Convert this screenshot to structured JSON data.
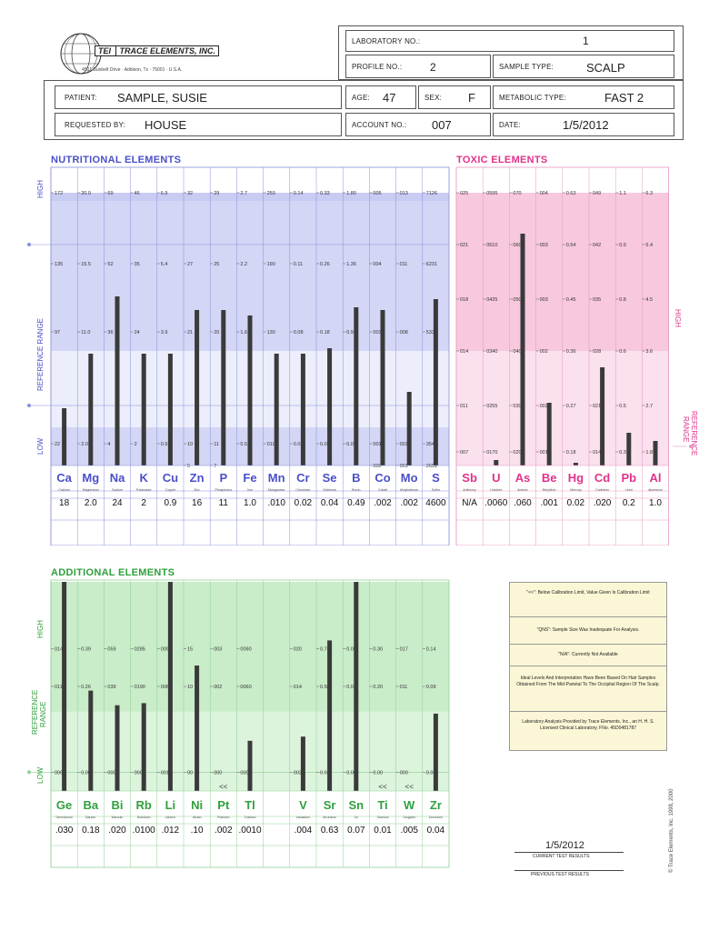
{
  "logo": {
    "mark": "TEI",
    "company": "TRACE ELEMENTS, INC.",
    "address": "4501 Sunbelt Drive · Addison, Tx · 75001 · U.S.A."
  },
  "header": {
    "lab_no_label": "LABORATORY NO.:",
    "lab_no": "1",
    "profile_no_label": "PROFILE NO.:",
    "profile_no": "2",
    "sample_type_label": "SAMPLE TYPE:",
    "sample_type": "SCALP",
    "patient_label": "PATIENT:",
    "patient": "SAMPLE, SUSIE",
    "age_label": "AGE:",
    "age": "47",
    "sex_label": "SEX:",
    "sex": "F",
    "metabolic_label": "METABOLIC TYPE:",
    "metabolic": "FAST 2",
    "requested_label": "REQUESTED BY:",
    "requested": "HOUSE",
    "account_label": "ACCOUNT NO.:",
    "account": "007",
    "date_label": "DATE:",
    "date": "1/5/2012"
  },
  "section_labels": {
    "high": "HIGH",
    "low": "LOW",
    "reference_range": "REFERENCE RANGE",
    "reference": "REFERENCE",
    "range": "RANGE"
  },
  "colors": {
    "nutritional": "#4a4fc8",
    "toxic": "#e0338a",
    "additional": "#2fa03c",
    "bar": "#3a3a3a"
  },
  "notes": [
    "\"<<\": Below Calibration Limit, Value Given Is Calibration Limit",
    "\"QNS\": Sample Size Was Inadequate For Analysis.",
    "\"N/A\": Currently Not Available",
    "Ideal Levels And Interpretation Have Been Based On Hair Samples Obtained From The Mid-Parietal To The Occipital Region Of The Scalp.",
    "Laboratory Analysis Provided by Trace Elements, Inc., an H. H. S. Licensed Clinical Laboratory. FNo. 45D0481787"
  ],
  "footer": {
    "current_date": "1/5/2012",
    "current_label": "CURRENT TEST RESULTS",
    "previous_label": "PREVIOUS TEST RESULTS",
    "copyright": "© Trace Elements, Inc. 1998, 2000"
  },
  "chart_data": [
    {
      "type": "bar",
      "title": "NUTRITIONAL ELEMENTS",
      "categories": [
        "Ca",
        "Mg",
        "Na",
        "K",
        "Cu",
        "Zn",
        "P",
        "Fe",
        "Mn",
        "Cr",
        "Se",
        "B",
        "Co",
        "Mo",
        "S"
      ],
      "names": [
        "Calcium",
        "Magnesium",
        "Sodium",
        "Potassium",
        "Copper",
        "Zinc",
        "Phosphorus",
        "Iron",
        "Manganese",
        "Chromium",
        "Selenium",
        "Boron",
        "Cobalt",
        "Molybdenum",
        "Sulfur"
      ],
      "values": [
        18,
        2.0,
        24,
        2,
        0.9,
        16,
        11,
        1.0,
        0.01,
        0.02,
        0.04,
        0.49,
        0.002,
        0.002,
        4600
      ],
      "value_labels": [
        "18",
        "2.0",
        "24",
        "2",
        "0.9",
        "16",
        "11",
        "1.0",
        ".010",
        "0.02",
        "0.04",
        "0.49",
        ".002",
        ".002",
        "4600"
      ],
      "bar_levels": [
        0.21,
        0.41,
        0.62,
        0.41,
        0.41,
        0.57,
        0.57,
        0.55,
        0.41,
        0.41,
        0.43,
        0.58,
        0.57,
        0.27,
        0.61
      ],
      "scale_ticks": [
        [
          "172",
          "135",
          "97",
          "22"
        ],
        [
          "20.0",
          "15.5",
          "11.0",
          "2.0"
        ],
        [
          "69",
          "52",
          "36",
          "4"
        ],
        [
          "46",
          "35",
          "24",
          "2"
        ],
        [
          "6.9",
          "5.4",
          "3.9",
          "0.9"
        ],
        [
          "32",
          "27",
          "21",
          "10",
          "5"
        ],
        [
          "29",
          "25",
          "20",
          "11",
          "7"
        ],
        [
          "2.7",
          "2.2",
          "1.6",
          "0.5"
        ],
        [
          "250",
          "190",
          "130",
          "010"
        ],
        [
          "0.14",
          "0.11",
          "0.08",
          "0.02"
        ],
        [
          "0.33",
          "0.26",
          "0.18",
          "0.03"
        ],
        [
          "1.80",
          "1.36",
          "0.91",
          "0.02"
        ],
        [
          "005",
          "004",
          "003",
          "001",
          "000"
        ],
        [
          "013",
          "011",
          "008",
          "003",
          "001"
        ],
        [
          "7126",
          "6231",
          "5336",
          "3546",
          "2651"
        ]
      ]
    },
    {
      "type": "bar",
      "title": "TOXIC ELEMENTS",
      "categories": [
        "Sb",
        "U",
        "As",
        "Be",
        "Hg",
        "Cd",
        "Pb",
        "Al"
      ],
      "names": [
        "Antimony",
        "Uranium",
        "Arsenic",
        "Beryllium",
        "Mercury",
        "Cadmium",
        "Lead",
        "Aluminum"
      ],
      "values": [
        null,
        0.006,
        0.06,
        0.001,
        0.02,
        0.02,
        0.2,
        1.0
      ],
      "value_labels": [
        "N/A",
        ".0060",
        ".060",
        ".001",
        "0.02",
        ".020",
        "0.2",
        "1.0"
      ],
      "bar_levels": [
        0,
        0.02,
        0.85,
        0.23,
        0.01,
        0.36,
        0.12,
        0.09
      ],
      "scale_ticks": [
        [
          "025",
          "021",
          "018",
          "014",
          "011",
          "007"
        ],
        [
          "0595",
          "0510",
          "0425",
          "0340",
          "0255",
          "0170"
        ],
        [
          "070",
          "060",
          "050",
          "040",
          "030",
          "020"
        ],
        [
          "004",
          "003",
          "003",
          "002",
          "002",
          "001"
        ],
        [
          "0.63",
          "0.54",
          "0.45",
          "0.36",
          "0.27",
          "0.18"
        ],
        [
          "049",
          "042",
          "035",
          "028",
          "021",
          "014"
        ],
        [
          "1.1",
          "0.9",
          "0.8",
          "0.6",
          "0.5",
          "0.3"
        ],
        [
          "6.3",
          "5.4",
          "4.5",
          "3.6",
          "2.7",
          "1.8"
        ]
      ]
    },
    {
      "type": "bar",
      "title": "ADDITIONAL ELEMENTS",
      "categories": [
        "Ge",
        "Ba",
        "Bi",
        "Rb",
        "Li",
        "Ni",
        "Pt",
        "Tl",
        "",
        "V",
        "Sr",
        "Sn",
        "Ti",
        "W",
        "Zr"
      ],
      "names": [
        "Germanium",
        "Barium",
        "Bismuth",
        "Rubidium",
        "Lithium",
        "Nickel",
        "Platinum",
        "Thallium",
        "",
        "Vanadium",
        "Strontium",
        "Tin",
        "Titanium",
        "Tungsten",
        "Zirconium"
      ],
      "values": [
        0.03,
        0.18,
        0.02,
        0.01,
        0.012,
        0.1,
        0.002,
        0.001,
        null,
        0.004,
        0.63,
        0.07,
        0.01,
        0.005,
        0.04
      ],
      "value_labels": [
        ".030",
        "0.18",
        ".020",
        ".0100",
        ".012",
        ".10",
        ".002",
        ".0010",
        "",
        ".004",
        "0.63",
        "0.07",
        "0.01",
        ".005",
        "0.04"
      ],
      "markers": [
        "",
        "",
        "",
        "",
        "",
        "",
        "<<",
        "",
        "",
        "",
        "",
        "",
        "<<",
        "<<",
        ""
      ],
      "bar_levels": [
        1.0,
        0.48,
        0.41,
        0.42,
        1.0,
        0.6,
        0,
        0.24,
        0,
        0.26,
        0.72,
        1.0,
        0,
        0,
        0.37
      ],
      "scale_ticks": [
        [
          "014",
          "011",
          "006"
        ],
        [
          "0.39",
          "0.26",
          "0.00"
        ],
        [
          "059",
          "039",
          "000"
        ],
        [
          "0285",
          "0190",
          "0000"
        ],
        [
          "009",
          "006",
          "001"
        ],
        [
          "15",
          "10",
          "00"
        ],
        [
          "003",
          "002",
          "000"
        ],
        [
          "0090",
          "0060",
          "0000"
        ],
        [
          "",
          "",
          ""
        ],
        [
          "020",
          "014",
          "002"
        ],
        [
          "0.74",
          "0.50",
          "0.03"
        ],
        [
          "0.05",
          "0.03",
          "0.00"
        ],
        [
          "0.30",
          "0.20",
          "0.00"
        ],
        [
          "017",
          "011",
          "000"
        ],
        [
          "0.14",
          "0.09",
          "0.00"
        ]
      ]
    }
  ]
}
